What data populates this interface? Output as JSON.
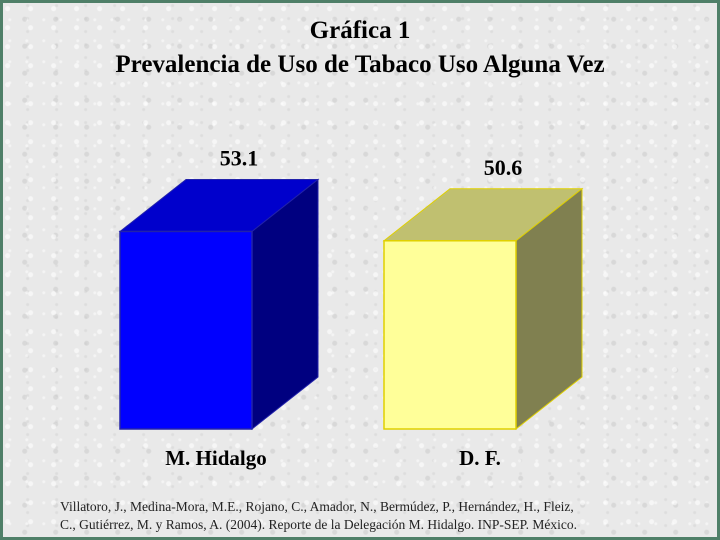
{
  "slide": {
    "title_line1": "Gráfica 1",
    "title_line2": "Prevalencia de Uso de Tabaco Uso Alguna Vez",
    "source_line1": "Villatoro, J., Medina-Mora, M.E., Rojano, C., Amador, N., Bermúdez, P., Hernández, H., Fleiz,",
    "source_line2": "C., Gutiérrez, M. y Ramos, A. (2004). Reporte de la Delegación M. Hidalgo. INP-SEP. México."
  },
  "chart_data": {
    "type": "bar",
    "style": "3d-box",
    "title": "Prevalencia de Uso de Tabaco Uso Alguna Vez",
    "categories": [
      "M. Hidalgo",
      "D. F."
    ],
    "values": [
      53.1,
      50.6
    ],
    "value_labels": [
      "53.1",
      "50.6"
    ],
    "xlabel": "",
    "ylabel": "",
    "grid": false,
    "legend": false,
    "colors": [
      {
        "front": "#0000ff",
        "top": "#0000cc",
        "side": "#000080",
        "edge": "#2222aa"
      },
      {
        "front": "#ffff99",
        "top": "#c0c070",
        "side": "#808050",
        "edge": "#e0d000"
      }
    ]
  }
}
